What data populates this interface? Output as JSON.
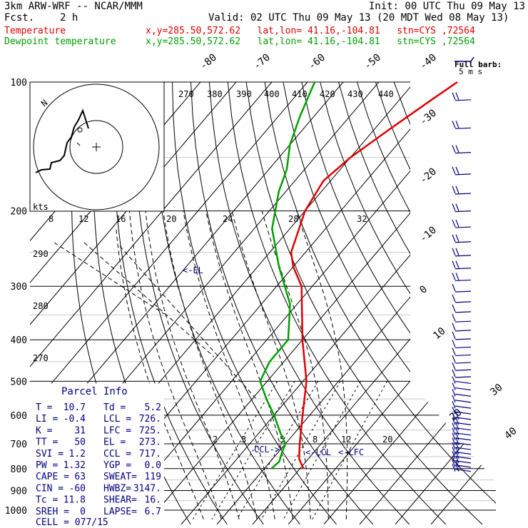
{
  "header": {
    "model": "3km ARW-WRF -- NCAR/MMM",
    "init": "Init: 00 UTC Thu 09 May 13",
    "fcst_label": "Fcst.",
    "fcst_value": "2 h",
    "valid": "Valid: 02 UTC Thu 09 May 13 (20 MDT Wed 08 May 13)",
    "temp_label": "Temperature",
    "dew_label": "Dewpoint temperature",
    "temp_info": "x,y=285.50,572.62   lat,lon= 41.16,-104.81   stn=CYS ,72564",
    "dew_info": "x,y=285.50,572.62   lat,lon= 41.16,-104.81   stn=CYS ,72564"
  },
  "colors": {
    "temperature": "#e00000",
    "dewpoint": "#00a000",
    "barbs": "#000080",
    "info": "#000080"
  },
  "chart_data": {
    "type": "line",
    "pressure_levels": [
      "100",
      "200",
      "300",
      "400",
      "500",
      "600",
      "700",
      "800",
      "900",
      "1000"
    ],
    "isotherm_labels": [
      "-80",
      "-70",
      "-60",
      "-50",
      "-40",
      "-30",
      "-20",
      "-10",
      "0",
      "10",
      "20",
      "30",
      "40"
    ],
    "theta_labels": [
      "270",
      "380",
      "390",
      "400",
      "410",
      "420",
      "430",
      "440"
    ],
    "theta_left_labels": [
      "290",
      "280",
      "270"
    ],
    "mixing_ratio_labels": [
      "2",
      "3",
      "5",
      "8",
      "12",
      "20"
    ],
    "hodo_speed_labels": [
      "8",
      "12",
      "16",
      "20",
      "24",
      "28",
      "32"
    ],
    "hodo_units": "kts",
    "ring_label": "N",
    "barb_legend": [
      "Full barb:",
      "5 m s"
    ],
    "parcel_markers": [
      "<-EL",
      "CCL->",
      "<-LCL",
      "<-LFC"
    ],
    "series": [
      {
        "name": "Temperature",
        "points": [
          [
            800,
            11
          ],
          [
            760,
            7.5
          ],
          [
            700,
            4
          ],
          [
            600,
            -2
          ],
          [
            500,
            -9
          ],
          [
            400,
            -20
          ],
          [
            300,
            -33
          ],
          [
            270,
            -40
          ],
          [
            250,
            -44
          ],
          [
            200,
            -50
          ],
          [
            170,
            -52
          ],
          [
            150,
            -50
          ],
          [
            130,
            -46
          ],
          [
            110,
            -41
          ],
          [
            100,
            -38
          ]
        ]
      },
      {
        "name": "Dewpoint temperature",
        "points": [
          [
            800,
            2
          ],
          [
            770,
            2.5
          ],
          [
            730,
            1
          ],
          [
            700,
            0
          ],
          [
            660,
            -4
          ],
          [
            600,
            -10
          ],
          [
            550,
            -16
          ],
          [
            500,
            -22
          ],
          [
            450,
            -24
          ],
          [
            400,
            -24
          ],
          [
            330,
            -32
          ],
          [
            270,
            -44
          ],
          [
            220,
            -55
          ],
          [
            180,
            -62
          ],
          [
            160,
            -65
          ],
          [
            140,
            -70
          ],
          [
            120,
            -74
          ],
          [
            100,
            -78
          ]
        ]
      }
    ]
  },
  "parcel": {
    "title": "Parcel Info",
    "rows": [
      [
        "T   =",
        "10.7",
        "Td  =",
        "5.2"
      ],
      [
        "LI  =",
        "-0.4",
        "LCL =",
        "726."
      ],
      [
        "K   =",
        "31",
        "LFC =",
        "725."
      ],
      [
        "TT  =",
        "50",
        "EL  =",
        "273."
      ],
      [
        "SVI =",
        "1.2",
        "CCL =",
        "717."
      ],
      [
        "PW  =",
        "1.32",
        "YGP =",
        "0.0"
      ],
      [
        "CAPE =",
        "63",
        "SWEAT=",
        "119"
      ],
      [
        "CIN  =",
        "-60",
        "HWBZ=",
        "3147."
      ],
      [
        "Tc   =",
        "11.8",
        "SHEAR=",
        "16."
      ],
      [
        "SREH =",
        "0",
        "LAPSE=",
        "6.7"
      ]
    ],
    "cell": "CELL = 077/15"
  }
}
